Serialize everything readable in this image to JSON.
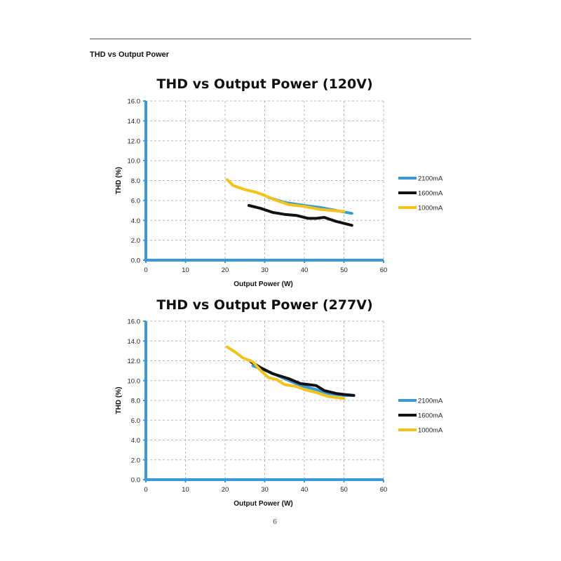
{
  "page": {
    "section_heading": "THD vs Output Power",
    "page_number": "6"
  },
  "colors": {
    "axis": "#3a9ad9",
    "grid": "#b8b8b8",
    "series_2100mA": "#3a9ad9",
    "series_1600mA": "#111111",
    "series_1000mA": "#f2c318"
  },
  "chart_data": [
    {
      "type": "line",
      "title": "THD vs Output Power (120V)",
      "xlabel": "Output Power (W)",
      "ylabel": "THD (%)",
      "xlim": [
        0,
        60
      ],
      "ylim": [
        0,
        16
      ],
      "x_ticks": [
        "0",
        "10",
        "20",
        "30",
        "40",
        "50",
        "60"
      ],
      "y_ticks": [
        "0.0",
        "2.0",
        "4.0",
        "6.0",
        "8.0",
        "10.0",
        "12.0",
        "14.0",
        "16.0"
      ],
      "grid": true,
      "legend_position": "right",
      "series": [
        {
          "name": "2100mA",
          "color": "#3a9ad9",
          "points": [
            [
              31,
              6.3
            ],
            [
              35,
              5.8
            ],
            [
              40,
              5.5
            ],
            [
              44,
              5.3
            ],
            [
              48,
              5.0
            ],
            [
              52,
              4.7
            ]
          ]
        },
        {
          "name": "1600mA",
          "color": "#111111",
          "points": [
            [
              26,
              5.5
            ],
            [
              29,
              5.2
            ],
            [
              32,
              4.8
            ],
            [
              35,
              4.6
            ],
            [
              38,
              4.5
            ],
            [
              41,
              4.2
            ],
            [
              43,
              4.2
            ],
            [
              45,
              4.3
            ],
            [
              48,
              3.9
            ],
            [
              52,
              3.5
            ]
          ]
        },
        {
          "name": "1000mA",
          "color": "#f2c318",
          "points": [
            [
              20.5,
              8.1
            ],
            [
              22,
              7.5
            ],
            [
              25,
              7.1
            ],
            [
              28,
              6.8
            ],
            [
              30,
              6.5
            ],
            [
              33,
              6.0
            ],
            [
              36,
              5.6
            ],
            [
              40,
              5.4
            ],
            [
              44,
              5.1
            ],
            [
              47,
              5.0
            ],
            [
              50,
              4.9
            ]
          ]
        }
      ]
    },
    {
      "type": "line",
      "title": "THD vs Output Power (277V)",
      "xlabel": "Output Power (W)",
      "ylabel": "THD (%)",
      "xlim": [
        0,
        60
      ],
      "ylim": [
        0,
        16
      ],
      "x_ticks": [
        "0",
        "10",
        "20",
        "30",
        "40",
        "50",
        "60"
      ],
      "y_ticks": [
        "0.0",
        "2.0",
        "4.0",
        "6.0",
        "8.0",
        "10.0",
        "12.0",
        "14.0",
        "16.0"
      ],
      "grid": true,
      "legend_position": "right",
      "series": [
        {
          "name": "2100mA",
          "color": "#3a9ad9",
          "points": [
            [
              27,
              11.5
            ],
            [
              31,
              10.9
            ],
            [
              35,
              10.2
            ],
            [
              39,
              9.5
            ],
            [
              43,
              9.1
            ],
            [
              46,
              8.7
            ],
            [
              50,
              8.5
            ],
            [
              52,
              8.5
            ]
          ]
        },
        {
          "name": "1600mA",
          "color": "#111111",
          "points": [
            [
              26.5,
              11.9
            ],
            [
              29,
              11.3
            ],
            [
              32,
              10.7
            ],
            [
              36,
              10.2
            ],
            [
              39,
              9.7
            ],
            [
              41,
              9.6
            ],
            [
              43,
              9.5
            ],
            [
              45,
              9.0
            ],
            [
              48,
              8.7
            ],
            [
              50,
              8.6
            ],
            [
              52.5,
              8.5
            ]
          ]
        },
        {
          "name": "1000mA",
          "color": "#f2c318",
          "points": [
            [
              20.5,
              13.4
            ],
            [
              22.5,
              12.9
            ],
            [
              24.5,
              12.3
            ],
            [
              27,
              11.9
            ],
            [
              29,
              11.0
            ],
            [
              31,
              10.3
            ],
            [
              33,
              10.1
            ],
            [
              35,
              9.6
            ],
            [
              38,
              9.4
            ],
            [
              40,
              9.1
            ],
            [
              43,
              8.8
            ],
            [
              46,
              8.4
            ],
            [
              48,
              8.3
            ],
            [
              50,
              8.2
            ]
          ]
        }
      ]
    }
  ]
}
